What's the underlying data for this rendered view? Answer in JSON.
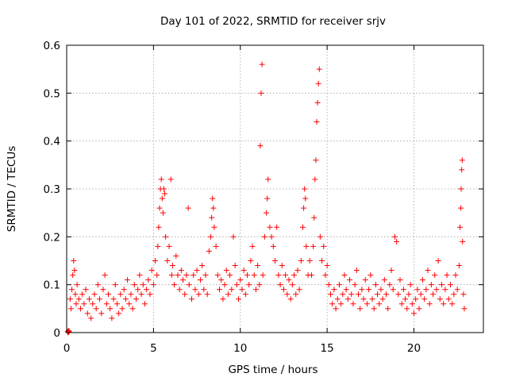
{
  "chart_data": {
    "type": "scatter",
    "title": "Day 101 of 2022, SRMTID for receiver srjv",
    "xlabel": "GPS time / hours",
    "ylabel": "SRMTID / TECUs",
    "xlim": [
      0,
      24
    ],
    "ylim": [
      0,
      0.6
    ],
    "xticks": [
      0,
      5,
      10,
      15,
      20
    ],
    "yticks": [
      0,
      0.1,
      0.2,
      0.3,
      0.4,
      0.5,
      0.6
    ],
    "xtick_labels": [
      "0",
      "5",
      "10",
      "15",
      "20"
    ],
    "ytick_labels": [
      "0",
      "0.1",
      "0.2",
      "0.3",
      "0.4",
      "0.5",
      "0.6"
    ],
    "grid": true,
    "marker": "+",
    "color": "#ff0000",
    "series": [
      {
        "name": "srjv",
        "points": [
          [
            0.05,
            0.002
          ],
          [
            0.08,
            0.0
          ],
          [
            0.1,
            0.004
          ],
          [
            0.12,
            0.001
          ],
          [
            0.15,
            0.003
          ],
          [
            0.2,
            0.07
          ],
          [
            0.25,
            0.05
          ],
          [
            0.3,
            0.09
          ],
          [
            0.35,
            0.12
          ],
          [
            0.4,
            0.15
          ],
          [
            0.45,
            0.13
          ],
          [
            0.5,
            0.08
          ],
          [
            0.55,
            0.06
          ],
          [
            0.6,
            0.1
          ],
          [
            0.7,
            0.07
          ],
          [
            0.8,
            0.05
          ],
          [
            0.9,
            0.08
          ],
          [
            1.0,
            0.06
          ],
          [
            1.1,
            0.09
          ],
          [
            1.2,
            0.04
          ],
          [
            1.3,
            0.07
          ],
          [
            1.4,
            0.03
          ],
          [
            1.5,
            0.06
          ],
          [
            1.6,
            0.08
          ],
          [
            1.7,
            0.05
          ],
          [
            1.8,
            0.1
          ],
          [
            1.9,
            0.07
          ],
          [
            2.0,
            0.04
          ],
          [
            2.1,
            0.09
          ],
          [
            2.2,
            0.12
          ],
          [
            2.3,
            0.06
          ],
          [
            2.4,
            0.08
          ],
          [
            2.5,
            0.05
          ],
          [
            2.6,
            0.03
          ],
          [
            2.7,
            0.07
          ],
          [
            2.8,
            0.1
          ],
          [
            2.9,
            0.06
          ],
          [
            3.0,
            0.04
          ],
          [
            3.1,
            0.08
          ],
          [
            3.2,
            0.05
          ],
          [
            3.3,
            0.09
          ],
          [
            3.4,
            0.07
          ],
          [
            3.5,
            0.11
          ],
          [
            3.6,
            0.06
          ],
          [
            3.7,
            0.08
          ],
          [
            3.8,
            0.05
          ],
          [
            3.9,
            0.1
          ],
          [
            4.0,
            0.07
          ],
          [
            4.1,
            0.09
          ],
          [
            4.2,
            0.12
          ],
          [
            4.3,
            0.08
          ],
          [
            4.4,
            0.1
          ],
          [
            4.5,
            0.06
          ],
          [
            4.6,
            0.09
          ],
          [
            4.7,
            0.11
          ],
          [
            4.8,
            0.08
          ],
          [
            4.9,
            0.13
          ],
          [
            5.0,
            0.1
          ],
          [
            5.1,
            0.15
          ],
          [
            5.2,
            0.12
          ],
          [
            5.25,
            0.18
          ],
          [
            5.3,
            0.22
          ],
          [
            5.35,
            0.26
          ],
          [
            5.4,
            0.3
          ],
          [
            5.45,
            0.32
          ],
          [
            5.5,
            0.28
          ],
          [
            5.55,
            0.25
          ],
          [
            5.6,
            0.3
          ],
          [
            5.65,
            0.29
          ],
          [
            5.7,
            0.2
          ],
          [
            5.8,
            0.15
          ],
          [
            5.9,
            0.18
          ],
          [
            6.0,
            0.32
          ],
          [
            6.05,
            0.12
          ],
          [
            6.1,
            0.14
          ],
          [
            6.2,
            0.1
          ],
          [
            6.3,
            0.16
          ],
          [
            6.4,
            0.12
          ],
          [
            6.5,
            0.09
          ],
          [
            6.6,
            0.13
          ],
          [
            6.7,
            0.11
          ],
          [
            6.8,
            0.08
          ],
          [
            6.9,
            0.12
          ],
          [
            7.0,
            0.26
          ],
          [
            7.05,
            0.1
          ],
          [
            7.2,
            0.07
          ],
          [
            7.3,
            0.12
          ],
          [
            7.4,
            0.09
          ],
          [
            7.5,
            0.13
          ],
          [
            7.6,
            0.08
          ],
          [
            7.7,
            0.11
          ],
          [
            7.8,
            0.14
          ],
          [
            7.9,
            0.09
          ],
          [
            8.0,
            0.12
          ],
          [
            8.1,
            0.08
          ],
          [
            8.2,
            0.17
          ],
          [
            8.3,
            0.2
          ],
          [
            8.35,
            0.24
          ],
          [
            8.4,
            0.28
          ],
          [
            8.45,
            0.26
          ],
          [
            8.5,
            0.22
          ],
          [
            8.6,
            0.18
          ],
          [
            8.7,
            0.12
          ],
          [
            8.8,
            0.09
          ],
          [
            8.9,
            0.11
          ],
          [
            9.0,
            0.07
          ],
          [
            9.1,
            0.1
          ],
          [
            9.2,
            0.13
          ],
          [
            9.3,
            0.08
          ],
          [
            9.4,
            0.12
          ],
          [
            9.5,
            0.09
          ],
          [
            9.6,
            0.2
          ],
          [
            9.7,
            0.14
          ],
          [
            9.8,
            0.1
          ],
          [
            9.9,
            0.07
          ],
          [
            10.0,
            0.11
          ],
          [
            10.1,
            0.09
          ],
          [
            10.2,
            0.13
          ],
          [
            10.3,
            0.08
          ],
          [
            10.4,
            0.12
          ],
          [
            10.5,
            0.1
          ],
          [
            10.6,
            0.15
          ],
          [
            10.7,
            0.18
          ],
          [
            10.8,
            0.12
          ],
          [
            10.9,
            0.09
          ],
          [
            11.0,
            0.14
          ],
          [
            11.1,
            0.1
          ],
          [
            11.15,
            0.39
          ],
          [
            11.2,
            0.5
          ],
          [
            11.25,
            0.56
          ],
          [
            11.3,
            0.12
          ],
          [
            11.4,
            0.2
          ],
          [
            11.5,
            0.25
          ],
          [
            11.55,
            0.28
          ],
          [
            11.6,
            0.32
          ],
          [
            11.7,
            0.22
          ],
          [
            11.8,
            0.2
          ],
          [
            11.9,
            0.18
          ],
          [
            12.0,
            0.15
          ],
          [
            12.1,
            0.22
          ],
          [
            12.2,
            0.12
          ],
          [
            12.3,
            0.1
          ],
          [
            12.4,
            0.14
          ],
          [
            12.5,
            0.09
          ],
          [
            12.6,
            0.12
          ],
          [
            12.7,
            0.08
          ],
          [
            12.8,
            0.11
          ],
          [
            12.9,
            0.07
          ],
          [
            13.0,
            0.1
          ],
          [
            13.1,
            0.12
          ],
          [
            13.2,
            0.08
          ],
          [
            13.3,
            0.13
          ],
          [
            13.4,
            0.09
          ],
          [
            13.5,
            0.15
          ],
          [
            13.6,
            0.22
          ],
          [
            13.65,
            0.26
          ],
          [
            13.7,
            0.3
          ],
          [
            13.75,
            0.28
          ],
          [
            13.8,
            0.18
          ],
          [
            13.9,
            0.12
          ],
          [
            14.0,
            0.15
          ],
          [
            14.1,
            0.12
          ],
          [
            14.2,
            0.18
          ],
          [
            14.25,
            0.24
          ],
          [
            14.3,
            0.32
          ],
          [
            14.35,
            0.36
          ],
          [
            14.4,
            0.44
          ],
          [
            14.45,
            0.48
          ],
          [
            14.5,
            0.52
          ],
          [
            14.55,
            0.55
          ],
          [
            14.6,
            0.2
          ],
          [
            14.7,
            0.15
          ],
          [
            14.8,
            0.18
          ],
          [
            14.9,
            0.12
          ],
          [
            15.0,
            0.14
          ],
          [
            15.1,
            0.1
          ],
          [
            15.2,
            0.08
          ],
          [
            15.3,
            0.06
          ],
          [
            15.4,
            0.09
          ],
          [
            15.5,
            0.05
          ],
          [
            15.6,
            0.07
          ],
          [
            15.7,
            0.1
          ],
          [
            15.8,
            0.06
          ],
          [
            15.9,
            0.08
          ],
          [
            16.0,
            0.12
          ],
          [
            16.1,
            0.09
          ],
          [
            16.2,
            0.07
          ],
          [
            16.3,
            0.11
          ],
          [
            16.4,
            0.08
          ],
          [
            16.5,
            0.06
          ],
          [
            16.6,
            0.1
          ],
          [
            16.7,
            0.13
          ],
          [
            16.8,
            0.08
          ],
          [
            16.9,
            0.05
          ],
          [
            17.0,
            0.09
          ],
          [
            17.1,
            0.07
          ],
          [
            17.2,
            0.11
          ],
          [
            17.3,
            0.06
          ],
          [
            17.4,
            0.09
          ],
          [
            17.5,
            0.12
          ],
          [
            17.6,
            0.07
          ],
          [
            17.7,
            0.05
          ],
          [
            17.8,
            0.1
          ],
          [
            17.9,
            0.08
          ],
          [
            18.0,
            0.06
          ],
          [
            18.1,
            0.09
          ],
          [
            18.2,
            0.07
          ],
          [
            18.3,
            0.11
          ],
          [
            18.4,
            0.08
          ],
          [
            18.5,
            0.05
          ],
          [
            18.6,
            0.1
          ],
          [
            18.7,
            0.13
          ],
          [
            18.8,
            0.09
          ],
          [
            18.9,
            0.2
          ],
          [
            19.0,
            0.19
          ],
          [
            19.1,
            0.08
          ],
          [
            19.2,
            0.11
          ],
          [
            19.3,
            0.06
          ],
          [
            19.4,
            0.09
          ],
          [
            19.5,
            0.07
          ],
          [
            19.6,
            0.05
          ],
          [
            19.7,
            0.08
          ],
          [
            19.8,
            0.1
          ],
          [
            19.9,
            0.06
          ],
          [
            20.0,
            0.04
          ],
          [
            20.1,
            0.07
          ],
          [
            20.2,
            0.09
          ],
          [
            20.3,
            0.05
          ],
          [
            20.4,
            0.08
          ],
          [
            20.5,
            0.11
          ],
          [
            20.6,
            0.07
          ],
          [
            20.7,
            0.09
          ],
          [
            20.8,
            0.13
          ],
          [
            20.9,
            0.06
          ],
          [
            21.0,
            0.1
          ],
          [
            21.1,
            0.08
          ],
          [
            21.2,
            0.12
          ],
          [
            21.3,
            0.09
          ],
          [
            21.4,
            0.15
          ],
          [
            21.5,
            0.07
          ],
          [
            21.6,
            0.1
          ],
          [
            21.7,
            0.06
          ],
          [
            21.8,
            0.09
          ],
          [
            21.9,
            0.12
          ],
          [
            22.0,
            0.07
          ],
          [
            22.1,
            0.1
          ],
          [
            22.2,
            0.06
          ],
          [
            22.3,
            0.08
          ],
          [
            22.4,
            0.12
          ],
          [
            22.5,
            0.09
          ],
          [
            22.6,
            0.14
          ],
          [
            22.65,
            0.22
          ],
          [
            22.7,
            0.26
          ],
          [
            22.72,
            0.3
          ],
          [
            22.75,
            0.34
          ],
          [
            22.78,
            0.36
          ],
          [
            22.8,
            0.19
          ],
          [
            22.85,
            0.08
          ],
          [
            22.9,
            0.05
          ]
        ]
      }
    ]
  }
}
